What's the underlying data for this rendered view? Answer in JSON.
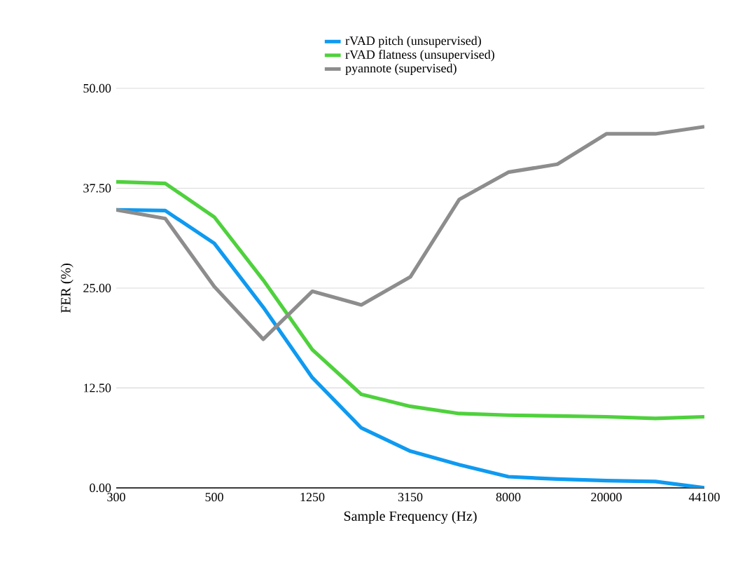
{
  "chart_data": {
    "type": "line",
    "xlabel": "Sample Frequency (Hz)",
    "ylabel": "FER (%)",
    "categories": [
      "300",
      null,
      "500",
      null,
      "1250",
      null,
      "3150",
      null,
      "8000",
      null,
      "20000",
      null,
      "44100"
    ],
    "series": [
      {
        "name": "rVAD pitch (unsupervised)",
        "color": "#0f9af0",
        "values": [
          34.8,
          34.7,
          30.6,
          22.6,
          13.8,
          7.5,
          4.6,
          2.9,
          1.4,
          1.1,
          0.9,
          0.8,
          0
        ]
      },
      {
        "name": "rVAD flatness (unsupervised)",
        "color": "#4fd13d",
        "values": [
          38.3,
          38.1,
          33.9,
          26.0,
          17.3,
          11.7,
          10.2,
          9.3,
          9.1,
          9.0,
          8.9,
          8.7,
          8.9
        ]
      },
      {
        "name": "pyannote (supervised)",
        "color": "#8d8d8d",
        "values": [
          34.8,
          33.7,
          25.2,
          18.6,
          24.6,
          22.9,
          26.4,
          36.1,
          39.5,
          40.5,
          44.3,
          44.3,
          45.2
        ]
      }
    ],
    "ylim": [
      0,
      50
    ],
    "yticks": [
      {
        "value": 0,
        "label": "0.00"
      },
      {
        "value": 12.5,
        "label": "12.50"
      },
      {
        "value": 25,
        "label": "25.00"
      },
      {
        "value": 37.5,
        "label": "37.50"
      },
      {
        "value": 50,
        "label": "50.00"
      }
    ],
    "grid": "y",
    "legend": "top",
    "marker": "none",
    "line_style": "solid"
  }
}
